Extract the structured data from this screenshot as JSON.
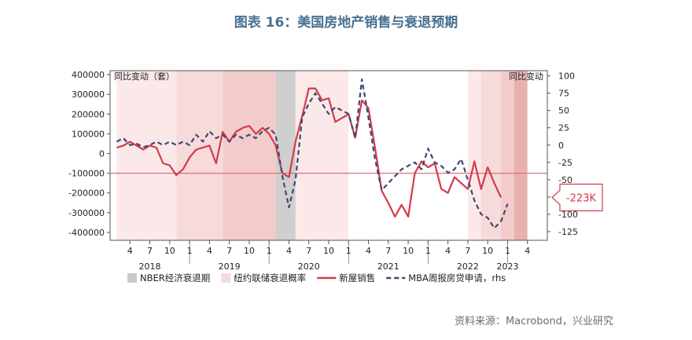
{
  "title": "图表 16：美国房地产销售与衰退预期",
  "source": "资料来源：Macrobond，兴业研究",
  "chart_data": {
    "type": "line",
    "left_axis_label": "同比变动（套）",
    "right_axis_label": "同比变动",
    "left_ticks": [
      400000,
      300000,
      200000,
      100000,
      0,
      -100000,
      -200000,
      -300000,
      -400000
    ],
    "left_tick_labels": [
      "400000",
      "300000",
      "200000",
      "100000",
      "0",
      "-100000",
      "-200000",
      "-300000",
      "-400000"
    ],
    "ylim_left": [
      -440000,
      420000
    ],
    "right_ticks": [
      100,
      75,
      50,
      25,
      0,
      -25,
      -50,
      -75,
      -100,
      -125
    ],
    "right_tick_labels": [
      "100",
      "75",
      "50",
      "25",
      "0",
      "-25",
      "-50",
      "-75",
      "-100",
      "-125"
    ],
    "ylim_right": [
      -137.5,
      107.5
    ],
    "x_month_ticks": [
      {
        "t": 2018.25,
        "label": "4"
      },
      {
        "t": 2018.5,
        "label": "7"
      },
      {
        "t": 2018.75,
        "label": "10"
      },
      {
        "t": 2019.0,
        "label": "1"
      },
      {
        "t": 2019.25,
        "label": "4"
      },
      {
        "t": 2019.5,
        "label": "7"
      },
      {
        "t": 2019.75,
        "label": "10"
      },
      {
        "t": 2020.0,
        "label": "1"
      },
      {
        "t": 2020.25,
        "label": "4"
      },
      {
        "t": 2020.5,
        "label": "7"
      },
      {
        "t": 2020.75,
        "label": "10"
      },
      {
        "t": 2021.0,
        "label": "1"
      },
      {
        "t": 2021.25,
        "label": "4"
      },
      {
        "t": 2021.5,
        "label": "7"
      },
      {
        "t": 2021.75,
        "label": "10"
      },
      {
        "t": 2022.0,
        "label": "1"
      },
      {
        "t": 2022.25,
        "label": "4"
      },
      {
        "t": 2022.5,
        "label": "7"
      },
      {
        "t": 2022.75,
        "label": "10"
      },
      {
        "t": 2023.0,
        "label": "1"
      },
      {
        "t": 2023.25,
        "label": "4"
      }
    ],
    "x_year_labels": [
      {
        "t": 2018.5,
        "label": "2018"
      },
      {
        "t": 2019.5,
        "label": "2019"
      },
      {
        "t": 2020.5,
        "label": "2020"
      },
      {
        "t": 2021.5,
        "label": "2021"
      },
      {
        "t": 2022.5,
        "label": "2022"
      },
      {
        "t": 2023.0,
        "label": "2023"
      }
    ],
    "xlim": [
      2018.0,
      2023.5
    ],
    "reference_line": {
      "value": -100000,
      "axis": "left"
    },
    "callout": {
      "label": "-223K",
      "value": -223000,
      "axis": "left"
    },
    "nber_recession": [
      {
        "start": 2020.083,
        "end": 2020.333
      }
    ],
    "recession_probability_bands": [
      {
        "start": 2018.083,
        "end": 2018.833,
        "level": 1
      },
      {
        "start": 2018.833,
        "end": 2019.417,
        "level": 2
      },
      {
        "start": 2019.417,
        "end": 2020.083,
        "level": 3
      },
      {
        "start": 2020.333,
        "end": 2021.0,
        "level": 1
      },
      {
        "start": 2022.5,
        "end": 2022.667,
        "level": 1
      },
      {
        "start": 2022.667,
        "end": 2022.917,
        "level": 2
      },
      {
        "start": 2022.917,
        "end": 2023.083,
        "level": 3
      },
      {
        "start": 2023.083,
        "end": 2023.25,
        "level": 4
      }
    ],
    "series": [
      {
        "name": "新屋销售",
        "axis": "left",
        "color": "#d43a4a",
        "style": "solid",
        "points": [
          [
            2018.083,
            30000
          ],
          [
            2018.167,
            40000
          ],
          [
            2018.25,
            60000
          ],
          [
            2018.333,
            40000
          ],
          [
            2018.417,
            20000
          ],
          [
            2018.5,
            40000
          ],
          [
            2018.583,
            30000
          ],
          [
            2018.667,
            -50000
          ],
          [
            2018.75,
            -60000
          ],
          [
            2018.833,
            -110000
          ],
          [
            2018.917,
            -80000
          ],
          [
            2019.0,
            -20000
          ],
          [
            2019.083,
            20000
          ],
          [
            2019.167,
            30000
          ],
          [
            2019.25,
            40000
          ],
          [
            2019.333,
            -50000
          ],
          [
            2019.417,
            110000
          ],
          [
            2019.5,
            60000
          ],
          [
            2019.583,
            110000
          ],
          [
            2019.667,
            130000
          ],
          [
            2019.75,
            140000
          ],
          [
            2019.833,
            100000
          ],
          [
            2019.917,
            130000
          ],
          [
            2020.0,
            100000
          ],
          [
            2020.083,
            40000
          ],
          [
            2020.167,
            -100000
          ],
          [
            2020.25,
            -120000
          ],
          [
            2020.333,
            60000
          ],
          [
            2020.417,
            190000
          ],
          [
            2020.5,
            330000
          ],
          [
            2020.583,
            330000
          ],
          [
            2020.667,
            270000
          ],
          [
            2020.75,
            280000
          ],
          [
            2020.833,
            160000
          ],
          [
            2020.917,
            180000
          ],
          [
            2021.0,
            200000
          ],
          [
            2021.083,
            80000
          ],
          [
            2021.167,
            270000
          ],
          [
            2021.25,
            230000
          ],
          [
            2021.333,
            30000
          ],
          [
            2021.417,
            -190000
          ],
          [
            2021.5,
            -250000
          ],
          [
            2021.583,
            -320000
          ],
          [
            2021.667,
            -260000
          ],
          [
            2021.75,
            -320000
          ],
          [
            2021.833,
            -100000
          ],
          [
            2021.917,
            -40000
          ],
          [
            2021.917,
            -40000
          ],
          [
            2022.0,
            -70000
          ],
          [
            2022.083,
            -50000
          ],
          [
            2022.167,
            -180000
          ],
          [
            2022.25,
            -200000
          ],
          [
            2022.333,
            -120000
          ],
          [
            2022.417,
            -150000
          ],
          [
            2022.5,
            -180000
          ],
          [
            2022.583,
            -40000
          ],
          [
            2022.667,
            -180000
          ],
          [
            2022.75,
            -70000
          ],
          [
            2022.833,
            -150000
          ],
          [
            2022.917,
            -223000
          ]
        ]
      },
      {
        "name": "MBA周报房贷申请，rhs",
        "axis": "right",
        "color": "#3b4a70",
        "style": "dashed",
        "points": [
          [
            2018.083,
            5
          ],
          [
            2018.167,
            10
          ],
          [
            2018.25,
            0
          ],
          [
            2018.333,
            2
          ],
          [
            2018.417,
            -3
          ],
          [
            2018.5,
            0
          ],
          [
            2018.583,
            5
          ],
          [
            2018.667,
            0
          ],
          [
            2018.75,
            5
          ],
          [
            2018.833,
            0
          ],
          [
            2018.917,
            5
          ],
          [
            2019.0,
            0
          ],
          [
            2019.083,
            15
          ],
          [
            2019.167,
            5
          ],
          [
            2019.25,
            20
          ],
          [
            2019.333,
            10
          ],
          [
            2019.417,
            15
          ],
          [
            2019.5,
            5
          ],
          [
            2019.583,
            15
          ],
          [
            2019.667,
            10
          ],
          [
            2019.75,
            15
          ],
          [
            2019.833,
            10
          ],
          [
            2019.917,
            20
          ],
          [
            2020.0,
            25
          ],
          [
            2020.083,
            15
          ],
          [
            2020.167,
            -45
          ],
          [
            2020.25,
            -90
          ],
          [
            2020.333,
            -50
          ],
          [
            2020.417,
            40
          ],
          [
            2020.5,
            60
          ],
          [
            2020.583,
            75
          ],
          [
            2020.667,
            60
          ],
          [
            2020.75,
            45
          ],
          [
            2020.833,
            55
          ],
          [
            2020.917,
            50
          ],
          [
            2021.0,
            45
          ],
          [
            2021.083,
            10
          ],
          [
            2021.167,
            95
          ],
          [
            2021.25,
            40
          ],
          [
            2021.333,
            -20
          ],
          [
            2021.417,
            -65
          ],
          [
            2021.5,
            -55
          ],
          [
            2021.583,
            -45
          ],
          [
            2021.667,
            -35
          ],
          [
            2021.75,
            -30
          ],
          [
            2021.833,
            -25
          ],
          [
            2021.917,
            -35
          ],
          [
            2022.0,
            -5
          ],
          [
            2022.083,
            -25
          ],
          [
            2022.167,
            -30
          ],
          [
            2022.25,
            -40
          ],
          [
            2022.333,
            -35
          ],
          [
            2022.417,
            -20
          ],
          [
            2022.5,
            -50
          ],
          [
            2022.583,
            -80
          ],
          [
            2022.667,
            -100
          ],
          [
            2022.75,
            -105
          ],
          [
            2022.833,
            -120
          ],
          [
            2022.917,
            -110
          ],
          [
            2023.0,
            -85
          ]
        ]
      }
    ],
    "legend": [
      {
        "label": "NBER经济衰退期",
        "kind": "swatch",
        "color": "#c9c9c9"
      },
      {
        "label": "纽约联储衰退概率",
        "kind": "swatch",
        "color": "#f7dada"
      },
      {
        "label": "新屋销售",
        "kind": "line",
        "color": "#d43a4a"
      },
      {
        "label": "MBA周报房贷申请，rhs",
        "kind": "dash",
        "color": "#3b4a70"
      }
    ],
    "legend_position": "bottom",
    "grid": false
  }
}
